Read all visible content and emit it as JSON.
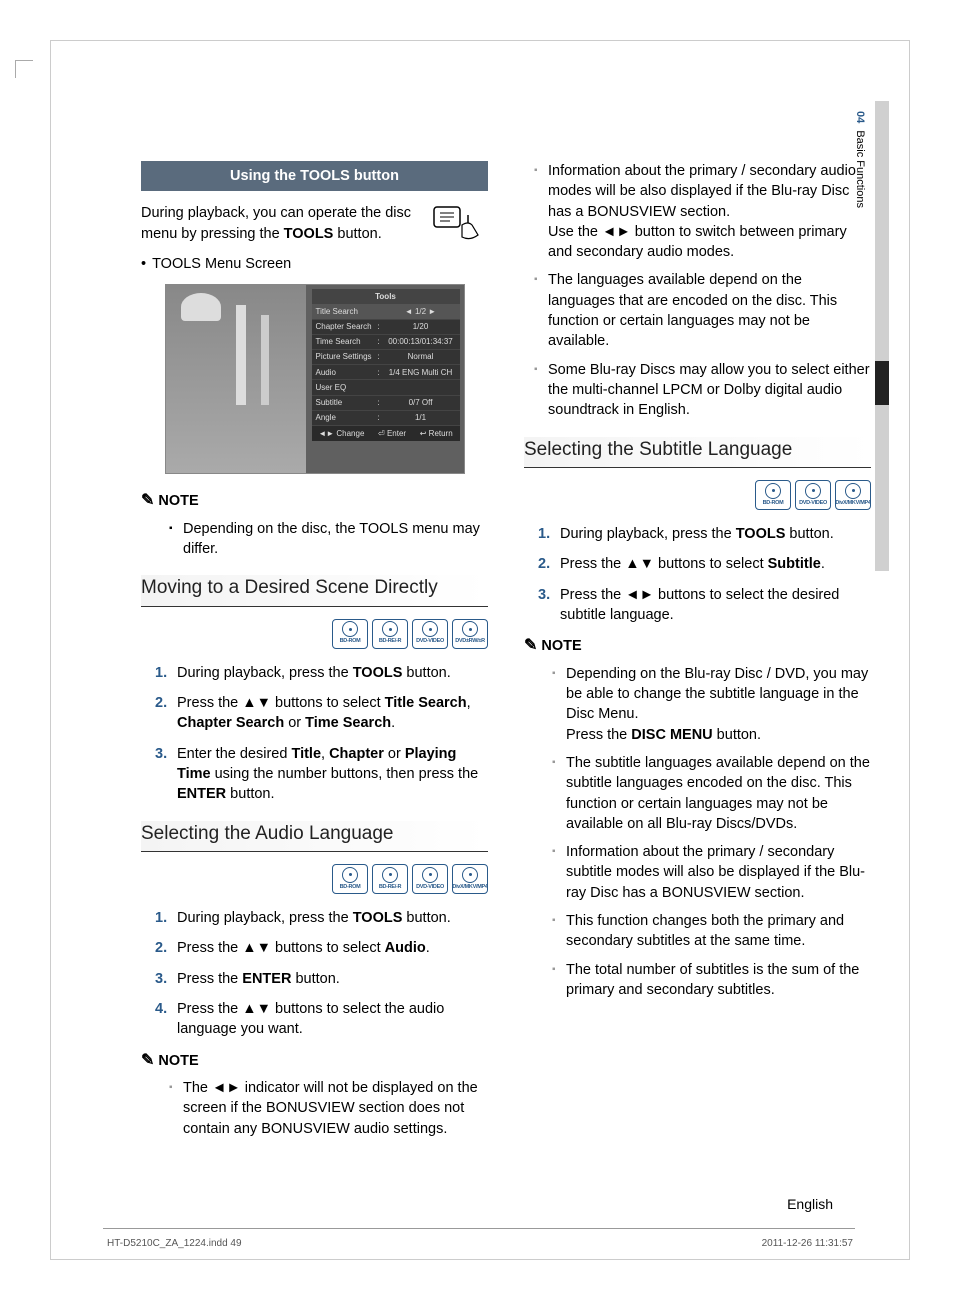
{
  "sidebar": {
    "chapter_num": "04",
    "chapter_title": "Basic Functions"
  },
  "left": {
    "section_bar": "Using the TOOLS button",
    "intro_before": "During playback, you can operate the disc menu by pressing the ",
    "intro_bold": "TOOLS",
    "intro_after": " button.",
    "menu_bullet": "TOOLS Menu Screen",
    "screenshot": {
      "title": "Tools",
      "rows": [
        {
          "l": "Title Search",
          "m": "",
          "r": "◄    1/2    ►",
          "sel": true
        },
        {
          "l": "Chapter Search",
          "m": ":",
          "r": "1/20"
        },
        {
          "l": "Time Search",
          "m": ":",
          "r": "00:00:13/01:34:37"
        },
        {
          "l": "Picture Settings",
          "m": ":",
          "r": "Normal"
        },
        {
          "l": "Audio",
          "m": ":",
          "r": "1/4 ENG Multi CH"
        },
        {
          "l": "User EQ",
          "m": "",
          "r": ""
        },
        {
          "l": "Subtitle",
          "m": ":",
          "r": "0/7 Off"
        },
        {
          "l": "Angle",
          "m": ":",
          "r": "1/1"
        }
      ],
      "footer": [
        "◄► Change",
        "⏎ Enter",
        "↩ Return"
      ]
    },
    "note_label": "NOTE",
    "note1_items": [
      "Depending on the disc, the TOOLS menu may differ."
    ],
    "h2_scene": "Moving to a Desired Scene Directly",
    "badges_scene": [
      "BD-ROM",
      "BD-RE/-R",
      "DVD-VIDEO",
      "DVD±RW/±R"
    ],
    "scene_steps": [
      {
        "pre": "During playback, press the ",
        "b": "TOOLS",
        "post": " button."
      },
      {
        "raw": "Press the ▲▼ buttons to select <b>Title Search</b>, <b>Chapter Search</b> or <b>Time Search</b>."
      },
      {
        "raw": "Enter the desired <b>Title</b>, <b>Chapter</b> or <b>Playing Time</b> using the number buttons, then press the <b>ENTER</b> button."
      }
    ],
    "h2_audio": "Selecting the Audio Language",
    "badges_audio": [
      "BD-ROM",
      "BD-RE/-R",
      "DVD-VIDEO",
      "DivX/MKV/MP4"
    ],
    "audio_steps": [
      {
        "pre": "During playback, press the ",
        "b": "TOOLS",
        "post": " button."
      },
      {
        "raw": "Press the ▲▼ buttons to select <b>Audio</b>."
      },
      {
        "raw": "Press the <b>ENTER</b> button."
      },
      {
        "raw": "Press the ▲▼ buttons to select the audio language you want."
      }
    ],
    "note2_items": [
      "The ◄► indicator will not be displayed on the screen if the BONUSVIEW section does not contain any BONUSVIEW audio settings."
    ]
  },
  "right": {
    "top_notes": [
      "Information about the primary / secondary audio modes will be also displayed if the Blu-ray Disc has a BONUSVIEW section.\nUse the ◄► button to switch between primary and secondary audio modes.",
      "The languages available depend on the languages that are encoded on the disc. This function or certain languages may not be available.",
      "Some Blu-ray Discs may allow you to select either the multi-channel LPCM or Dolby digital audio soundtrack in English."
    ],
    "h2_sub": "Selecting the Subtitle Language",
    "badges_sub": [
      "BD-ROM",
      "DVD-VIDEO",
      "DivX/MKV/MP4"
    ],
    "sub_steps": [
      {
        "pre": "During playback, press the ",
        "b": "TOOLS",
        "post": " button."
      },
      {
        "raw": "Press the ▲▼ buttons to select <b>Subtitle</b>."
      },
      {
        "raw": "Press the ◄► buttons to select the desired subtitle language."
      }
    ],
    "note_label": "NOTE",
    "sub_notes": [
      "Depending on the Blu-ray Disc / DVD, you may be able to change the subtitle language in the Disc Menu.\nPress the <b>DISC MENU</b> button.",
      "The subtitle languages available depend on the subtitle languages encoded on the disc. This function or certain languages may not be available on all Blu-ray Discs/DVDs.",
      "Information about the primary / secondary subtitle modes will also be displayed if the Blu-ray Disc has a BONUSVIEW section.",
      "This function changes both the primary and secondary subtitles at the same time.",
      "The total number of subtitles is the sum of the primary and secondary subtitles."
    ]
  },
  "footer": {
    "lang": "English"
  },
  "meta": {
    "file": "HT-D5210C_ZA_1224.indd   49",
    "stamp": "2011-12-26     11:31:57"
  },
  "colors": {
    "accent": "#2a5a8a",
    "barbg": "#5a6b7d"
  }
}
